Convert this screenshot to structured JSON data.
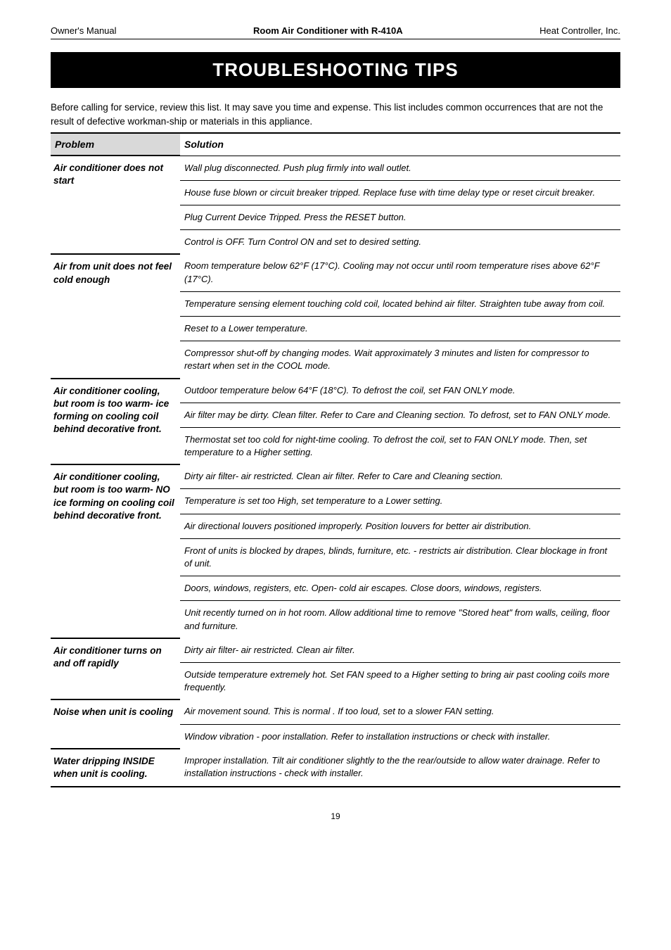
{
  "header": {
    "left": "Owner's Manual",
    "center": "Room Air Conditioner with R-410A",
    "right": "Heat Controller, Inc."
  },
  "banner": "TROUBLESHOOTING TIPS",
  "intro": "Before calling for service, review this list. It may save you time and expense. This list includes common occurrences that are not the result of defective workman-ship or materials in this appliance.",
  "table": {
    "head": {
      "problem": "Problem",
      "solution": "Solution"
    },
    "groups": [
      {
        "label": "Air conditioner does not start",
        "solutions": [
          "Wall plug disconnected. Push plug firmly into wall outlet.",
          "House fuse blown or circuit breaker tripped. Replace fuse with time delay type or reset circuit breaker.",
          "Plug Current Device Tripped. Press the RESET button.",
          "Control is OFF. Turn Control ON and set to desired setting."
        ]
      },
      {
        "label": "Air from unit does not feel cold enough",
        "solutions": [
          "Room temperature below 62°F (17°C). Cooling may not occur until room temperature rises above 62°F (17°C).",
          "Temperature sensing element touching cold coil, located behind air filter. Straighten tube away from coil.",
          "Reset to a Lower temperature.",
          "Compressor shut-off by changing modes. Wait approximately 3 minutes and listen for compressor to restart when set in the COOL mode."
        ]
      },
      {
        "label": "Air conditioner cooling, but room is too warm- ice forming on cooling coil behind decorative front.",
        "solutions": [
          "Outdoor  temperature below 64°F (18°C).   To defrost the coil, set FAN ONLY mode.",
          "Air filter may be dirty. Clean filter. Refer to Care and Cleaning section. To defrost, set to FAN ONLY mode.",
          "Thermostat set too cold for night-time cooling. To defrost the coil, set to FAN ONLY mode. Then, set temperature to a Higher setting."
        ]
      },
      {
        "label": "Air conditioner cooling, but room is too warm- NO ice forming on cooling coil behind decorative front.",
        "solutions": [
          "Dirty air filter- air restricted. Clean air filter. Refer to Care and Cleaning section.",
          "Temperature is set too High, set temperature to a Lower setting.",
          "Air directional louvers positioned improperly. Position louvers for better air distribution.",
          "Front of units is blocked by drapes, blinds, furniture, etc. - restricts air distribution. Clear blockage in front of unit.",
          "Doors, windows, registers, etc. Open- cold air escapes. Close doors, windows, registers.",
          "Unit recently turned on in hot room. Allow additional time to remove \"Stored heat\" from walls, ceiling, floor and furniture."
        ]
      },
      {
        "label": "Air conditioner turns on and off rapidly",
        "solutions": [
          "Dirty air filter- air restricted. Clean air filter.",
          "Outside temperature extremely hot. Set FAN speed to a Higher setting to bring air past cooling coils more frequently."
        ]
      },
      {
        "label": "Noise when unit is cooling",
        "solutions": [
          "Air movement sound. This is normal . If too loud, set to a slower  FAN setting.",
          "Window vibration - poor installation. Refer to installation instructions or check with installer."
        ]
      },
      {
        "label": "Water dripping INSIDE when unit is cooling.",
        "solutions": [
          "Improper installation. Tilt air conditioner slightly to the the rear/outside to allow water drainage. Refer to installation instructions - check with installer."
        ]
      }
    ]
  },
  "page_number": "19"
}
